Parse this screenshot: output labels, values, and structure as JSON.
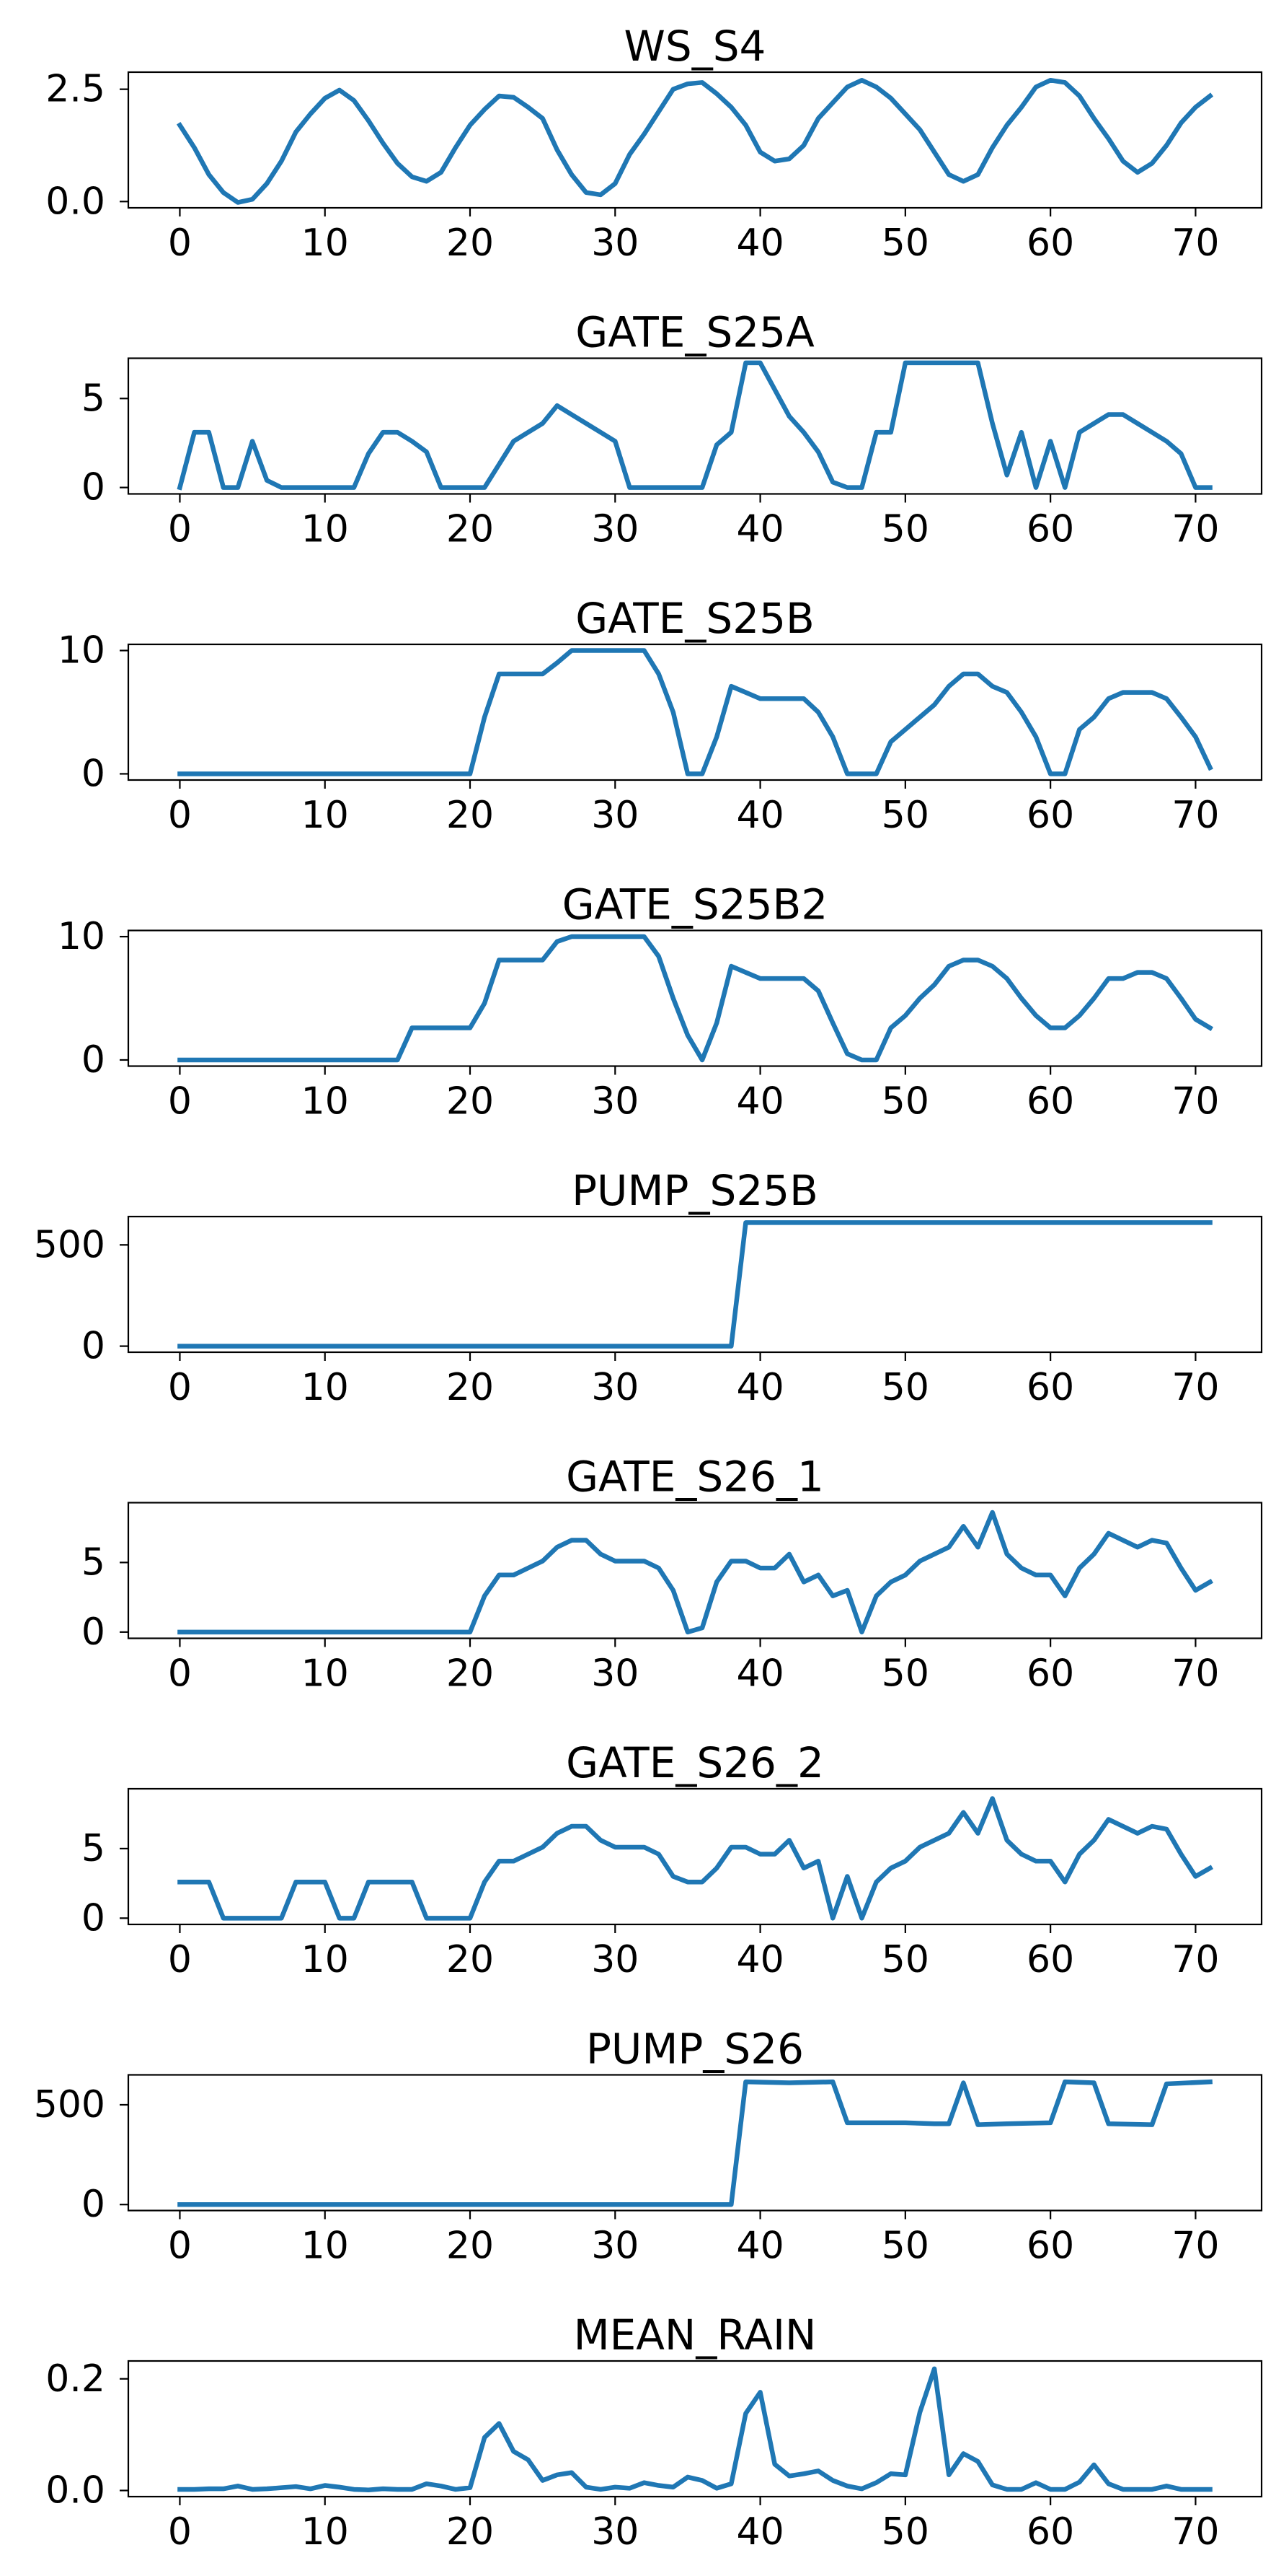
{
  "chart_data": [
    {
      "type": "line",
      "title": "WS_S4",
      "xlim": [
        -3.55,
        74.55
      ],
      "ylim": [
        -0.14,
        2.88
      ],
      "xticks": [
        0,
        10,
        20,
        30,
        40,
        50,
        60,
        70
      ],
      "xtick_labels": [
        "0",
        "10",
        "20",
        "30",
        "40",
        "50",
        "60",
        "70"
      ],
      "yticks": [
        0.0,
        2.5
      ],
      "ytick_labels": [
        "0.0",
        "2.5"
      ],
      "color": "#1f77b4",
      "x": [
        0,
        1,
        2,
        3,
        4,
        5,
        6,
        7,
        8,
        9,
        10,
        11,
        12,
        13,
        14,
        15,
        16,
        17,
        18,
        19,
        20,
        21,
        22,
        23,
        24,
        25,
        26,
        27,
        28,
        29,
        30,
        31,
        32,
        33,
        34,
        35,
        36,
        37,
        38,
        39,
        40,
        41,
        42,
        43,
        44,
        45,
        46,
        47,
        48,
        49,
        50,
        51,
        52,
        53,
        54,
        55,
        56,
        57,
        58,
        59,
        60,
        61,
        62,
        63,
        64,
        65,
        66,
        67,
        68,
        69,
        70,
        71
      ],
      "y": [
        1.7,
        1.2,
        0.6,
        0.2,
        -0.02,
        0.05,
        0.4,
        0.9,
        1.55,
        1.95,
        2.3,
        2.48,
        2.25,
        1.8,
        1.3,
        0.85,
        0.55,
        0.45,
        0.65,
        1.2,
        1.7,
        2.05,
        2.35,
        2.32,
        2.1,
        1.85,
        1.15,
        0.6,
        0.2,
        0.15,
        0.4,
        1.05,
        1.5,
        2.0,
        2.5,
        2.62,
        2.65,
        2.4,
        2.1,
        1.7,
        1.1,
        0.9,
        0.95,
        1.25,
        1.85,
        2.2,
        2.55,
        2.7,
        2.55,
        2.3,
        1.95,
        1.6,
        1.1,
        0.6,
        0.45,
        0.6,
        1.2,
        1.7,
        2.1,
        2.55,
        2.7,
        2.65,
        2.35,
        1.85,
        1.4,
        0.9,
        0.65,
        0.85,
        1.25,
        1.75,
        2.1,
        2.35
      ]
    },
    {
      "type": "line",
      "title": "GATE_S25A",
      "xlim": [
        -3.55,
        74.55
      ],
      "ylim": [
        -0.36,
        7.26
      ],
      "xticks": [
        0,
        10,
        20,
        30,
        40,
        50,
        60,
        70
      ],
      "xtick_labels": [
        "0",
        "10",
        "20",
        "30",
        "40",
        "50",
        "60",
        "70"
      ],
      "yticks": [
        0,
        5
      ],
      "ytick_labels": [
        "0",
        "5"
      ],
      "color": "#1f77b4",
      "x": [
        0,
        1,
        2,
        3,
        4,
        5,
        6,
        7,
        8,
        9,
        10,
        11,
        12,
        13,
        14,
        15,
        16,
        17,
        18,
        19,
        20,
        21,
        22,
        23,
        24,
        25,
        26,
        27,
        28,
        29,
        30,
        31,
        32,
        33,
        34,
        35,
        36,
        37,
        38,
        39,
        40,
        41,
        42,
        43,
        44,
        45,
        46,
        47,
        48,
        49,
        50,
        51,
        52,
        53,
        54,
        55,
        56,
        57,
        58,
        59,
        60,
        61,
        62,
        63,
        64,
        65,
        66,
        67,
        68,
        69,
        70,
        71
      ],
      "y": [
        0,
        3.1,
        3.1,
        0,
        0,
        2.6,
        0.4,
        0,
        0,
        0,
        0,
        0,
        0,
        1.9,
        3.1,
        3.1,
        2.6,
        2.0,
        0,
        0,
        0,
        0,
        1.3,
        2.6,
        3.1,
        3.6,
        4.6,
        4.1,
        3.6,
        3.1,
        2.6,
        0,
        0,
        0,
        0,
        0,
        0,
        2.4,
        3.1,
        7.0,
        7.0,
        5.5,
        4.0,
        3.1,
        2.0,
        0.3,
        0,
        0,
        3.1,
        3.1,
        7.0,
        7.0,
        7.0,
        7.0,
        7.0,
        7.0,
        3.6,
        0.7,
        3.1,
        0,
        2.6,
        0,
        3.1,
        3.6,
        4.1,
        4.1,
        3.6,
        3.1,
        2.6,
        1.9,
        0,
        0
      ]
    },
    {
      "type": "line",
      "title": "GATE_S25B",
      "xlim": [
        -3.55,
        74.55
      ],
      "ylim": [
        -0.5,
        10.5
      ],
      "xticks": [
        0,
        10,
        20,
        30,
        40,
        50,
        60,
        70
      ],
      "xtick_labels": [
        "0",
        "10",
        "20",
        "30",
        "40",
        "50",
        "60",
        "70"
      ],
      "yticks": [
        0,
        10
      ],
      "ytick_labels": [
        "0",
        "10"
      ],
      "color": "#1f77b4",
      "x": [
        0,
        1,
        2,
        3,
        4,
        5,
        6,
        7,
        8,
        9,
        10,
        11,
        12,
        13,
        14,
        15,
        16,
        17,
        18,
        19,
        20,
        21,
        22,
        23,
        24,
        25,
        26,
        27,
        28,
        29,
        30,
        31,
        32,
        33,
        34,
        35,
        36,
        37,
        38,
        39,
        40,
        41,
        42,
        43,
        44,
        45,
        46,
        47,
        48,
        49,
        50,
        51,
        52,
        53,
        54,
        55,
        56,
        57,
        58,
        59,
        60,
        61,
        62,
        63,
        64,
        65,
        66,
        67,
        68,
        69,
        70,
        71
      ],
      "y": [
        0,
        0,
        0,
        0,
        0,
        0,
        0,
        0,
        0,
        0,
        0,
        0,
        0,
        0,
        0,
        0,
        0,
        0,
        0,
        0,
        0,
        4.6,
        8.1,
        8.1,
        8.1,
        8.1,
        9.0,
        10.0,
        10.0,
        10.0,
        10.0,
        10.0,
        10.0,
        8.1,
        5.0,
        0,
        0,
        3.0,
        7.1,
        6.6,
        6.1,
        6.1,
        6.1,
        6.1,
        5.0,
        3.0,
        0,
        0,
        0,
        2.6,
        3.6,
        4.6,
        5.6,
        7.1,
        8.1,
        8.1,
        7.1,
        6.6,
        5.0,
        3.0,
        0,
        0,
        3.6,
        4.6,
        6.1,
        6.6,
        6.6,
        6.6,
        6.1,
        4.6,
        3.0,
        0.5
      ]
    },
    {
      "type": "line",
      "title": "GATE_S25B2",
      "xlim": [
        -3.55,
        74.55
      ],
      "ylim": [
        -0.5,
        10.5
      ],
      "xticks": [
        0,
        10,
        20,
        30,
        40,
        50,
        60,
        70
      ],
      "xtick_labels": [
        "0",
        "10",
        "20",
        "30",
        "40",
        "50",
        "60",
        "70"
      ],
      "yticks": [
        0,
        10
      ],
      "ytick_labels": [
        "0",
        "10"
      ],
      "color": "#1f77b4",
      "x": [
        0,
        1,
        2,
        3,
        4,
        5,
        6,
        7,
        8,
        9,
        10,
        11,
        12,
        13,
        14,
        15,
        16,
        17,
        18,
        19,
        20,
        21,
        22,
        23,
        24,
        25,
        26,
        27,
        28,
        29,
        30,
        31,
        32,
        33,
        34,
        35,
        36,
        37,
        38,
        39,
        40,
        41,
        42,
        43,
        44,
        45,
        46,
        47,
        48,
        49,
        50,
        51,
        52,
        53,
        54,
        55,
        56,
        57,
        58,
        59,
        60,
        61,
        62,
        63,
        64,
        65,
        66,
        67,
        68,
        69,
        70,
        71
      ],
      "y": [
        0,
        0,
        0,
        0,
        0,
        0,
        0,
        0,
        0,
        0,
        0,
        0,
        0,
        0,
        0,
        0,
        2.6,
        2.6,
        2.6,
        2.6,
        2.6,
        4.6,
        8.1,
        8.1,
        8.1,
        8.1,
        9.6,
        10.0,
        10.0,
        10.0,
        10.0,
        10.0,
        10.0,
        8.4,
        5.0,
        2.0,
        0,
        3.0,
        7.6,
        7.1,
        6.6,
        6.6,
        6.6,
        6.6,
        5.6,
        3.0,
        0.5,
        0,
        0,
        2.6,
        3.6,
        5.0,
        6.1,
        7.6,
        8.1,
        8.1,
        7.6,
        6.6,
        5.0,
        3.6,
        2.6,
        2.6,
        3.6,
        5.0,
        6.6,
        6.6,
        7.1,
        7.1,
        6.6,
        5.0,
        3.3,
        2.6
      ]
    },
    {
      "type": "line",
      "title": "PUMP_S25B",
      "xlim": [
        -3.55,
        74.55
      ],
      "ylim": [
        -30,
        640
      ],
      "xticks": [
        0,
        10,
        20,
        30,
        40,
        50,
        60,
        70
      ],
      "xtick_labels": [
        "0",
        "10",
        "20",
        "30",
        "40",
        "50",
        "60",
        "70"
      ],
      "yticks": [
        0,
        500
      ],
      "ytick_labels": [
        "0",
        "500"
      ],
      "color": "#1f77b4",
      "x": [
        0,
        38,
        39,
        71
      ],
      "y": [
        0,
        0,
        610,
        610
      ]
    },
    {
      "type": "line",
      "title": "GATE_S26_1",
      "xlim": [
        -3.55,
        74.55
      ],
      "ylim": [
        -0.45,
        9.3
      ],
      "xticks": [
        0,
        10,
        20,
        30,
        40,
        50,
        60,
        70
      ],
      "xtick_labels": [
        "0",
        "10",
        "20",
        "30",
        "40",
        "50",
        "60",
        "70"
      ],
      "yticks": [
        0,
        5
      ],
      "ytick_labels": [
        "0",
        "5"
      ],
      "color": "#1f77b4",
      "x": [
        0,
        1,
        2,
        3,
        4,
        5,
        6,
        7,
        8,
        9,
        10,
        11,
        12,
        13,
        14,
        15,
        16,
        17,
        18,
        19,
        20,
        21,
        22,
        23,
        24,
        25,
        26,
        27,
        28,
        29,
        30,
        31,
        32,
        33,
        34,
        35,
        36,
        37,
        38,
        39,
        40,
        41,
        42,
        43,
        44,
        45,
        46,
        47,
        48,
        49,
        50,
        51,
        52,
        53,
        54,
        55,
        56,
        57,
        58,
        59,
        60,
        61,
        62,
        63,
        64,
        65,
        66,
        67,
        68,
        69,
        70,
        71
      ],
      "y": [
        0,
        0,
        0,
        0,
        0,
        0,
        0,
        0,
        0,
        0,
        0,
        0,
        0,
        0,
        0,
        0,
        0,
        0,
        0,
        0,
        0,
        2.6,
        4.1,
        4.1,
        4.6,
        5.1,
        6.1,
        6.6,
        6.6,
        5.6,
        5.1,
        5.1,
        5.1,
        4.6,
        3.0,
        0,
        0.3,
        3.6,
        5.1,
        5.1,
        4.6,
        4.6,
        5.6,
        3.6,
        4.1,
        2.6,
        3.0,
        0,
        2.6,
        3.6,
        4.1,
        5.1,
        5.6,
        6.1,
        7.6,
        6.1,
        8.6,
        5.6,
        4.6,
        4.1,
        4.1,
        2.6,
        4.6,
        5.6,
        7.1,
        6.6,
        6.1,
        6.6,
        6.4,
        4.6,
        3.0,
        3.6
      ]
    },
    {
      "type": "line",
      "title": "GATE_S26_2",
      "xlim": [
        -3.55,
        74.55
      ],
      "ylim": [
        -0.45,
        9.3
      ],
      "xticks": [
        0,
        10,
        20,
        30,
        40,
        50,
        60,
        70
      ],
      "xtick_labels": [
        "0",
        "10",
        "20",
        "30",
        "40",
        "50",
        "60",
        "70"
      ],
      "yticks": [
        0,
        5
      ],
      "ytick_labels": [
        "0",
        "5"
      ],
      "color": "#1f77b4",
      "x": [
        0,
        1,
        2,
        3,
        4,
        5,
        6,
        7,
        8,
        9,
        10,
        11,
        12,
        13,
        14,
        15,
        16,
        17,
        18,
        19,
        20,
        21,
        22,
        23,
        24,
        25,
        26,
        27,
        28,
        29,
        30,
        31,
        32,
        33,
        34,
        35,
        36,
        37,
        38,
        39,
        40,
        41,
        42,
        43,
        44,
        45,
        46,
        47,
        48,
        49,
        50,
        51,
        52,
        53,
        54,
        55,
        56,
        57,
        58,
        59,
        60,
        61,
        62,
        63,
        64,
        65,
        66,
        67,
        68,
        69,
        70,
        71
      ],
      "y": [
        2.6,
        2.6,
        2.6,
        0,
        0,
        0,
        0,
        0,
        2.6,
        2.6,
        2.6,
        0,
        0,
        2.6,
        2.6,
        2.6,
        2.6,
        0,
        0,
        0,
        0,
        2.6,
        4.1,
        4.1,
        4.6,
        5.1,
        6.1,
        6.6,
        6.6,
        5.6,
        5.1,
        5.1,
        5.1,
        4.6,
        3.0,
        2.6,
        2.6,
        3.6,
        5.1,
        5.1,
        4.6,
        4.6,
        5.6,
        3.6,
        4.1,
        0,
        3.0,
        0,
        2.6,
        3.6,
        4.1,
        5.1,
        5.6,
        6.1,
        7.6,
        6.1,
        8.6,
        5.6,
        4.6,
        4.1,
        4.1,
        2.6,
        4.6,
        5.6,
        7.1,
        6.6,
        6.1,
        6.6,
        6.4,
        4.6,
        3.0,
        3.6
      ]
    },
    {
      "type": "line",
      "title": "PUMP_S26",
      "xlim": [
        -3.55,
        74.55
      ],
      "ylim": [
        -30,
        650
      ],
      "xticks": [
        0,
        10,
        20,
        30,
        40,
        50,
        60,
        70
      ],
      "xtick_labels": [
        "0",
        "10",
        "20",
        "30",
        "40",
        "50",
        "60",
        "70"
      ],
      "yticks": [
        0,
        500
      ],
      "ytick_labels": [
        "0",
        "500"
      ],
      "color": "#1f77b4",
      "x": [
        0,
        38,
        39,
        42,
        45,
        46,
        48,
        50,
        52,
        53,
        54,
        55,
        57,
        60,
        61,
        63,
        64,
        67,
        68,
        71
      ],
      "y": [
        0,
        0,
        615,
        610,
        615,
        410,
        410,
        410,
        405,
        405,
        610,
        400,
        405,
        410,
        615,
        610,
        405,
        400,
        605,
        615
      ]
    },
    {
      "type": "line",
      "title": "MEAN_RAIN",
      "xlim": [
        -3.55,
        74.55
      ],
      "ylim": [
        -0.011,
        0.232
      ],
      "xticks": [
        0,
        10,
        20,
        30,
        40,
        50,
        60,
        70
      ],
      "xtick_labels": [
        "0",
        "10",
        "20",
        "30",
        "40",
        "50",
        "60",
        "70"
      ],
      "yticks": [
        0.0,
        0.2
      ],
      "ytick_labels": [
        "0.0",
        "0.2"
      ],
      "color": "#1f77b4",
      "x": [
        0,
        1,
        2,
        3,
        4,
        5,
        6,
        7,
        8,
        9,
        10,
        11,
        12,
        13,
        14,
        15,
        16,
        17,
        18,
        19,
        20,
        21,
        22,
        23,
        24,
        25,
        26,
        27,
        28,
        29,
        30,
        31,
        32,
        33,
        34,
        35,
        36,
        37,
        38,
        39,
        40,
        41,
        42,
        43,
        44,
        45,
        46,
        47,
        48,
        49,
        50,
        51,
        52,
        53,
        54,
        55,
        56,
        57,
        58,
        59,
        60,
        61,
        62,
        63,
        64,
        65,
        66,
        67,
        68,
        69,
        70,
        71
      ],
      "y": [
        0.002,
        0.002,
        0.003,
        0.003,
        0.008,
        0.002,
        0.003,
        0.005,
        0.007,
        0.003,
        0.009,
        0.006,
        0.002,
        0.001,
        0.003,
        0.002,
        0.002,
        0.012,
        0.008,
        0.002,
        0.005,
        0.095,
        0.12,
        0.07,
        0.055,
        0.018,
        0.028,
        0.032,
        0.006,
        0.002,
        0.006,
        0.004,
        0.014,
        0.009,
        0.006,
        0.024,
        0.018,
        0.004,
        0.012,
        0.138,
        0.176,
        0.047,
        0.026,
        0.03,
        0.035,
        0.018,
        0.008,
        0.003,
        0.014,
        0.03,
        0.028,
        0.14,
        0.218,
        0.028,
        0.066,
        0.052,
        0.01,
        0.002,
        0.002,
        0.014,
        0.002,
        0.002,
        0.015,
        0.046,
        0.012,
        0.002,
        0.002,
        0.002,
        0.008,
        0.002,
        0.002,
        0.002
      ]
    }
  ]
}
